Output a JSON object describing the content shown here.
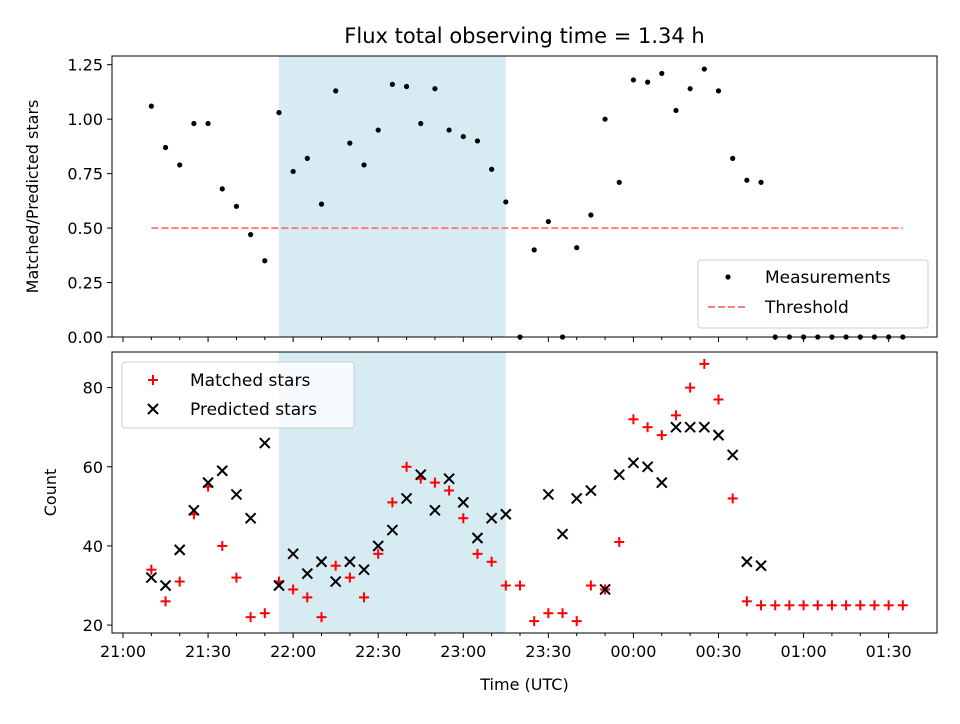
{
  "chart_data": [
    {
      "type": "scatter",
      "title": "Flux total observing time = 1.34 h",
      "xlabel": "",
      "ylabel": "Matched/Predicted stars",
      "ylim": [
        0,
        1.29
      ],
      "yticks": [
        "0.00",
        "0.25",
        "0.50",
        "0.75",
        "1.00",
        "1.25"
      ],
      "ytick_values": [
        0,
        0.25,
        0.5,
        0.75,
        1.0,
        1.25
      ],
      "legend_placement": "lower-right",
      "shaded_span": {
        "start": "21:55",
        "end": "23:15",
        "color": "#add8e6"
      },
      "series": [
        {
          "name": "Measurements",
          "marker": "dot",
          "color": "#000000",
          "x": [
            "21:10",
            "21:15",
            "21:20",
            "21:25",
            "21:30",
            "21:35",
            "21:40",
            "21:45",
            "21:50",
            "21:55",
            "22:00",
            "22:05",
            "22:10",
            "22:15",
            "22:20",
            "22:25",
            "22:30",
            "22:35",
            "22:40",
            "22:45",
            "22:50",
            "22:55",
            "23:00",
            "23:05",
            "23:10",
            "23:15",
            "23:20",
            "23:25",
            "23:30",
            "23:35",
            "23:40",
            "23:45",
            "23:50",
            "23:55",
            "00:00",
            "00:05",
            "00:10",
            "00:15",
            "00:20",
            "00:25",
            "00:30",
            "00:35",
            "00:40",
            "00:45",
            "00:50",
            "00:55",
            "01:00",
            "01:05",
            "01:10",
            "01:15",
            "01:20",
            "01:25",
            "01:30",
            "01:35"
          ],
          "y": [
            1.06,
            0.87,
            0.79,
            0.98,
            0.98,
            0.68,
            0.6,
            0.47,
            0.35,
            1.03,
            0.76,
            0.82,
            0.61,
            1.13,
            0.89,
            0.79,
            0.95,
            1.16,
            1.15,
            0.98,
            1.14,
            0.95,
            0.92,
            0.9,
            0.77,
            0.62,
            0.0,
            0.4,
            0.53,
            0.0,
            0.41,
            0.56,
            1.0,
            0.71,
            1.18,
            1.17,
            1.21,
            1.04,
            1.14,
            1.23,
            1.13,
            0.82,
            0.72,
            0.71,
            0.0,
            0.0,
            0.0,
            0.0,
            0.0,
            0.0,
            0.0,
            0.0,
            0.0,
            0.0
          ]
        },
        {
          "name": "Threshold",
          "marker": "dashed-line",
          "color": "#ff7f7f",
          "x": [
            "21:10",
            "01:35"
          ],
          "y": [
            0.5,
            0.5
          ]
        }
      ]
    },
    {
      "type": "scatter",
      "title": "",
      "xlabel": "Time (UTC)",
      "ylabel": "Count",
      "ylim": [
        18,
        89
      ],
      "yticks": [
        "20",
        "40",
        "60",
        "80"
      ],
      "ytick_values": [
        20,
        40,
        60,
        80
      ],
      "xticks": [
        "21:00",
        "21:30",
        "22:00",
        "22:30",
        "23:00",
        "23:30",
        "00:00",
        "00:30",
        "01:00",
        "01:30"
      ],
      "legend_placement": "upper-left",
      "shaded_span": {
        "start": "21:55",
        "end": "23:15",
        "color": "#add8e6"
      },
      "series": [
        {
          "name": "Matched stars",
          "marker": "plus",
          "color": "#ff0000",
          "x": [
            "21:10",
            "21:15",
            "21:20",
            "21:25",
            "21:30",
            "21:35",
            "21:40",
            "21:45",
            "21:50",
            "21:55",
            "22:00",
            "22:05",
            "22:10",
            "22:15",
            "22:20",
            "22:25",
            "22:30",
            "22:35",
            "22:40",
            "22:45",
            "22:50",
            "22:55",
            "23:00",
            "23:05",
            "23:10",
            "23:15",
            "23:20",
            "23:25",
            "23:30",
            "23:35",
            "23:40",
            "23:45",
            "23:50",
            "23:55",
            "00:00",
            "00:05",
            "00:10",
            "00:15",
            "00:20",
            "00:25",
            "00:30",
            "00:35",
            "00:40",
            "00:45",
            "00:50",
            "00:55",
            "01:00",
            "01:05",
            "01:10",
            "01:15",
            "01:20",
            "01:25",
            "01:30",
            "01:35"
          ],
          "y": [
            34,
            26,
            31,
            48,
            55,
            40,
            32,
            22,
            23,
            31,
            29,
            27,
            22,
            35,
            32,
            27,
            38,
            51,
            60,
            57,
            56,
            54,
            47,
            38,
            36,
            30,
            30,
            21,
            23,
            23,
            21,
            30,
            29,
            41,
            72,
            70,
            68,
            73,
            80,
            86,
            77,
            52,
            26,
            25,
            25,
            25,
            25,
            25,
            25,
            25,
            25,
            25,
            25,
            25
          ]
        },
        {
          "name": "Predicted stars",
          "marker": "x",
          "color": "#000000",
          "x": [
            "21:10",
            "21:15",
            "21:20",
            "21:25",
            "21:30",
            "21:35",
            "21:40",
            "21:45",
            "21:50",
            "21:55",
            "22:00",
            "22:05",
            "22:10",
            "22:15",
            "22:20",
            "22:25",
            "22:30",
            "22:35",
            "22:40",
            "22:45",
            "22:50",
            "22:55",
            "23:00",
            "23:05",
            "23:10",
            "23:15",
            "23:30",
            "23:35",
            "23:40",
            "23:45",
            "23:50",
            "23:55",
            "00:00",
            "00:05",
            "00:10",
            "00:15",
            "00:20",
            "00:25",
            "00:30",
            "00:35",
            "00:40",
            "00:45"
          ],
          "y": [
            32,
            30,
            39,
            49,
            56,
            59,
            53,
            47,
            66,
            30,
            38,
            33,
            36,
            31,
            36,
            34,
            40,
            44,
            52,
            58,
            49,
            57,
            51,
            42,
            47,
            48,
            53,
            43,
            52,
            54,
            29,
            58,
            61,
            60,
            56,
            70,
            70,
            70,
            68,
            63,
            36,
            35
          ]
        }
      ]
    }
  ]
}
